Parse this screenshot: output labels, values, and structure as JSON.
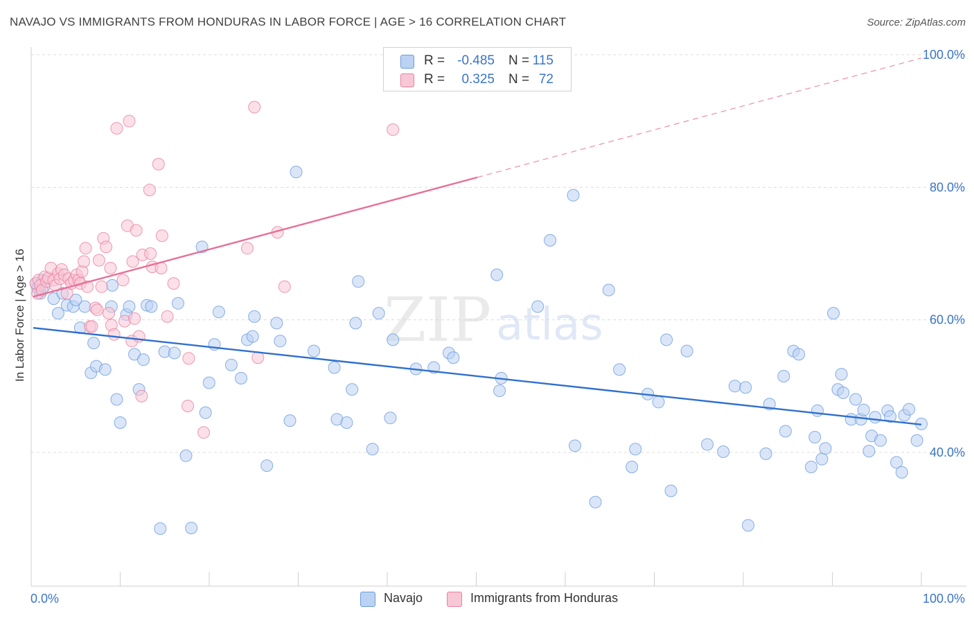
{
  "title": "NAVAJO VS IMMIGRANTS FROM HONDURAS IN LABOR FORCE | AGE > 16 CORRELATION CHART",
  "source": "Source: ZipAtlas.com",
  "watermark": {
    "zip": "ZIP",
    "atlas": "atlas"
  },
  "colors": {
    "navajo": "#6a9be0",
    "navajo_fill": "#bcd2f2",
    "honduras": "#ea7fa0",
    "honduras_fill": "#f7c7d6",
    "navajo_line": "#2f6fcf",
    "honduras_line": "#e86f96",
    "tick_label": "#3a74c8"
  },
  "legend": {
    "navajo": {
      "r_label": "R =",
      "r_value": "-0.485",
      "n_label": "N =",
      "n_value": "115"
    },
    "honduras": {
      "r_label": "R =",
      "r_value": "0.325",
      "n_label": "N =",
      "n_value": "72"
    }
  },
  "bottom_legend": {
    "navajo": "Navajo",
    "honduras": "Immigrants from Honduras"
  },
  "chart_data": {
    "type": "scatter",
    "ylabel": "In Labor Force | Age > 16",
    "xlabel": "",
    "x_tick_labels": [
      "0.0%",
      "100.0%"
    ],
    "y_tick_labels": [
      "40.0%",
      "60.0%",
      "80.0%",
      "100.0%"
    ],
    "xlim": [
      0,
      100
    ],
    "ylim": [
      20,
      103
    ],
    "grid": true,
    "legend_position": "top-center",
    "series": [
      {
        "name": "Navajo",
        "trend": {
          "x": [
            0,
            100
          ],
          "y": [
            58.8,
            44.2
          ]
        },
        "points": [
          [
            0.3,
            65.5
          ],
          [
            0.5,
            64.8
          ],
          [
            0.8,
            64.0
          ],
          [
            1.0,
            66.0
          ],
          [
            1.2,
            65.0
          ],
          [
            2.3,
            63.2
          ],
          [
            2.8,
            61.0
          ],
          [
            3.3,
            64.0
          ],
          [
            3.8,
            62.2
          ],
          [
            4.5,
            62.0
          ],
          [
            4.8,
            63.0
          ],
          [
            5.3,
            58.8
          ],
          [
            5.8,
            62.0
          ],
          [
            6.5,
            52.0
          ],
          [
            6.8,
            56.5
          ],
          [
            7.1,
            53.0
          ],
          [
            8.1,
            52.5
          ],
          [
            8.8,
            62.0
          ],
          [
            8.9,
            65.2
          ],
          [
            9.4,
            48.0
          ],
          [
            9.8,
            44.5
          ],
          [
            10.5,
            60.8
          ],
          [
            10.8,
            62.0
          ],
          [
            11.4,
            54.8
          ],
          [
            11.9,
            49.5
          ],
          [
            12.4,
            54.0
          ],
          [
            12.8,
            62.2
          ],
          [
            13.3,
            62.0
          ],
          [
            14.3,
            28.5
          ],
          [
            14.8,
            55.2
          ],
          [
            15.9,
            55.0
          ],
          [
            16.3,
            62.5
          ],
          [
            17.2,
            39.5
          ],
          [
            17.8,
            28.6
          ],
          [
            19.0,
            71.0
          ],
          [
            19.4,
            46.0
          ],
          [
            19.8,
            50.5
          ],
          [
            20.4,
            56.3
          ],
          [
            20.9,
            61.2
          ],
          [
            22.3,
            53.2
          ],
          [
            23.4,
            51.2
          ],
          [
            24.1,
            57.0
          ],
          [
            24.7,
            57.5
          ],
          [
            24.9,
            60.5
          ],
          [
            26.3,
            38.0
          ],
          [
            27.4,
            59.5
          ],
          [
            27.8,
            56.8
          ],
          [
            28.9,
            44.8
          ],
          [
            29.6,
            82.3
          ],
          [
            31.6,
            55.3
          ],
          [
            33.9,
            52.8
          ],
          [
            34.2,
            45.0
          ],
          [
            35.3,
            44.5
          ],
          [
            35.9,
            49.5
          ],
          [
            36.3,
            59.5
          ],
          [
            36.6,
            65.8
          ],
          [
            38.2,
            40.5
          ],
          [
            38.9,
            61.0
          ],
          [
            40.2,
            45.2
          ],
          [
            40.5,
            57.0
          ],
          [
            43.1,
            52.6
          ],
          [
            45.1,
            52.8
          ],
          [
            46.8,
            55.0
          ],
          [
            47.3,
            54.3
          ],
          [
            52.2,
            66.8
          ],
          [
            52.5,
            49.3
          ],
          [
            52.7,
            51.2
          ],
          [
            56.8,
            62.0
          ],
          [
            58.2,
            72.0
          ],
          [
            60.8,
            78.8
          ],
          [
            61.0,
            41.0
          ],
          [
            63.3,
            32.5
          ],
          [
            64.8,
            64.5
          ],
          [
            66.0,
            52.5
          ],
          [
            67.4,
            37.8
          ],
          [
            67.8,
            40.5
          ],
          [
            69.2,
            48.8
          ],
          [
            70.4,
            47.6
          ],
          [
            71.3,
            57.0
          ],
          [
            71.8,
            34.2
          ],
          [
            73.6,
            55.3
          ],
          [
            75.9,
            41.2
          ],
          [
            77.7,
            40.1
          ],
          [
            79.0,
            50.0
          ],
          [
            80.2,
            49.8
          ],
          [
            80.5,
            29.0
          ],
          [
            82.5,
            39.8
          ],
          [
            82.9,
            47.3
          ],
          [
            84.5,
            51.5
          ],
          [
            84.7,
            43.2
          ],
          [
            85.6,
            55.3
          ],
          [
            86.2,
            54.8
          ],
          [
            87.6,
            37.8
          ],
          [
            88.0,
            42.3
          ],
          [
            88.3,
            46.3
          ],
          [
            88.8,
            39.0
          ],
          [
            89.2,
            40.6
          ],
          [
            90.1,
            61.0
          ],
          [
            90.6,
            49.5
          ],
          [
            91.0,
            51.8
          ],
          [
            91.2,
            49.0
          ],
          [
            92.1,
            45.0
          ],
          [
            92.6,
            48.0
          ],
          [
            93.2,
            45.0
          ],
          [
            93.5,
            46.4
          ],
          [
            94.1,
            40.2
          ],
          [
            94.4,
            42.5
          ],
          [
            94.8,
            45.3
          ],
          [
            95.4,
            41.8
          ],
          [
            96.2,
            46.3
          ],
          [
            96.5,
            45.4
          ],
          [
            97.2,
            38.5
          ],
          [
            97.8,
            37.0
          ],
          [
            98.1,
            45.6
          ],
          [
            98.6,
            46.5
          ],
          [
            99.5,
            41.8
          ],
          [
            100.0,
            44.3
          ]
        ]
      },
      {
        "name": "Immigrants from Honduras",
        "trend": {
          "x": [
            0,
            50
          ],
          "y": [
            63.5,
            81.5
          ]
        },
        "trend_extension": {
          "x": [
            50,
            100
          ],
          "y": [
            81.5,
            99.5
          ]
        },
        "points": [
          [
            0.3,
            65.5
          ],
          [
            0.5,
            64.0
          ],
          [
            0.6,
            66.0
          ],
          [
            0.8,
            65.2
          ],
          [
            1.0,
            64.5
          ],
          [
            1.3,
            66.5
          ],
          [
            1.5,
            65.8
          ],
          [
            1.7,
            66.3
          ],
          [
            2.0,
            67.8
          ],
          [
            2.3,
            66.0
          ],
          [
            2.5,
            65.2
          ],
          [
            2.8,
            67.0
          ],
          [
            3.0,
            66.2
          ],
          [
            3.2,
            67.6
          ],
          [
            3.5,
            66.8
          ],
          [
            3.8,
            64.0
          ],
          [
            4.0,
            66.2
          ],
          [
            4.3,
            65.5
          ],
          [
            4.6,
            66.0
          ],
          [
            4.9,
            66.8
          ],
          [
            5.1,
            66.0
          ],
          [
            5.3,
            65.5
          ],
          [
            5.5,
            67.3
          ],
          [
            5.7,
            68.8
          ],
          [
            5.9,
            70.8
          ],
          [
            6.1,
            65.0
          ],
          [
            6.4,
            59.0
          ],
          [
            6.6,
            59.0
          ],
          [
            7.0,
            61.8
          ],
          [
            7.2,
            61.5
          ],
          [
            7.4,
            69.0
          ],
          [
            7.7,
            65.0
          ],
          [
            7.9,
            72.3
          ],
          [
            8.2,
            71.0
          ],
          [
            8.5,
            61.0
          ],
          [
            8.7,
            67.8
          ],
          [
            8.8,
            59.2
          ],
          [
            9.1,
            57.8
          ],
          [
            9.4,
            88.9
          ],
          [
            10.1,
            66.0
          ],
          [
            10.3,
            59.8
          ],
          [
            10.6,
            74.2
          ],
          [
            10.8,
            90.0
          ],
          [
            11.1,
            56.8
          ],
          [
            11.2,
            68.8
          ],
          [
            11.4,
            60.2
          ],
          [
            11.6,
            73.5
          ],
          [
            11.9,
            57.5
          ],
          [
            12.2,
            48.5
          ],
          [
            12.3,
            69.8
          ],
          [
            13.1,
            79.6
          ],
          [
            13.2,
            70.0
          ],
          [
            13.4,
            68.0
          ],
          [
            14.1,
            83.5
          ],
          [
            14.4,
            67.8
          ],
          [
            14.5,
            72.7
          ],
          [
            15.1,
            60.5
          ],
          [
            15.8,
            65.5
          ],
          [
            17.4,
            47.0
          ],
          [
            17.5,
            54.2
          ],
          [
            19.2,
            43.0
          ],
          [
            24.1,
            70.8
          ],
          [
            24.9,
            92.1
          ],
          [
            25.3,
            54.3
          ],
          [
            27.5,
            73.2
          ],
          [
            28.3,
            65.0
          ],
          [
            40.5,
            88.7
          ],
          [
            41.0,
            99.9
          ]
        ]
      }
    ]
  }
}
